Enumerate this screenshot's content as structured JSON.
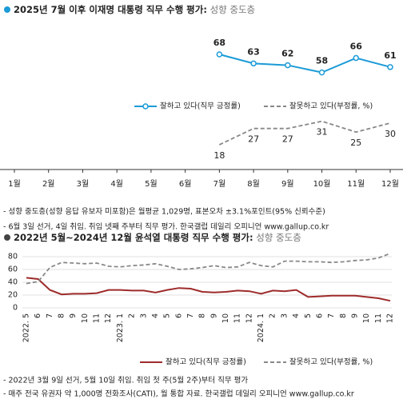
{
  "chart_data": [
    {
      "type": "line",
      "title": "2025년 7월 이후 이재명 대통령 직무 수행 평가:",
      "subtitle": "성향 중도층",
      "categories": [
        "1월",
        "2월",
        "3월",
        "4월",
        "5월",
        "6월",
        "7월",
        "8월",
        "9월",
        "10월",
        "11월",
        "12월"
      ],
      "series": [
        {
          "name": "잘하고 있다(직무 긍정률)",
          "color": "#1b9bd7",
          "values": [
            null,
            null,
            null,
            null,
            null,
            null,
            68,
            63,
            62,
            58,
            66,
            61
          ]
        },
        {
          "name": "잘못하고 있다(부정률, %)",
          "color": "#888888",
          "values": [
            null,
            null,
            null,
            null,
            null,
            null,
            18,
            27,
            27,
            31,
            25,
            30
          ]
        }
      ],
      "notes": [
        "- 성향 중도층(성향 응답 유보자 미포함)은 월평균 1,029명, 표본오차 ±3.1%포인트(95% 신뢰수준)",
        "- 6월 3일 선거, 4일 취임. 취임 넷째 주부터 직무 평가. 한국갤럽 데일리 오피니언 www.gallup.co.kr"
      ]
    },
    {
      "type": "line",
      "title": "2022년 5월~2024년 12월 윤석열 대통령 직무 수행 평가:",
      "subtitle": "성향 중도층",
      "categories": [
        "2022. 5",
        "6",
        "7",
        "8",
        "9",
        "10",
        "11",
        "12",
        "2023. 1",
        "2",
        "3",
        "4",
        "5",
        "6",
        "7",
        "8",
        "9",
        "10",
        "11",
        "12",
        "2024. 1",
        "2",
        "3",
        "4",
        "5",
        "6",
        "7",
        "8",
        "9",
        "10",
        "11",
        "12"
      ],
      "series": [
        {
          "name": "잘하고 있다(직무 긍정률)",
          "color": "#9e2b2b",
          "values": [
            47,
            45,
            28,
            21,
            22,
            22,
            23,
            28,
            28,
            27,
            27,
            24,
            28,
            31,
            30,
            25,
            24,
            25,
            27,
            26,
            22,
            27,
            26,
            28,
            17,
            18,
            19,
            19,
            19,
            17,
            15,
            11
          ]
        },
        {
          "name": "잘못하고 있다(부정률, %)",
          "color": "#888888",
          "values": [
            38,
            41,
            63,
            71,
            70,
            69,
            70,
            65,
            64,
            66,
            67,
            69,
            65,
            60,
            61,
            63,
            66,
            63,
            64,
            71,
            66,
            64,
            73,
            73,
            72,
            72,
            71,
            72,
            74,
            75,
            78,
            85
          ]
        }
      ],
      "ylim": [
        0,
        85
      ],
      "yticks": [
        0,
        20,
        40,
        60,
        80
      ],
      "grid": true,
      "notes": [
        "- 2022년 3월 9일 선거, 5월 10일 취임. 취임 첫 주(5월 2주)부터 직무 평가",
        "- 매주 전국 유권자 약 1,000명 전화조사(CATI), 월 통합 자료. 한국갤럽 데일리 오피니언 www.gallup.co.kr"
      ]
    }
  ]
}
